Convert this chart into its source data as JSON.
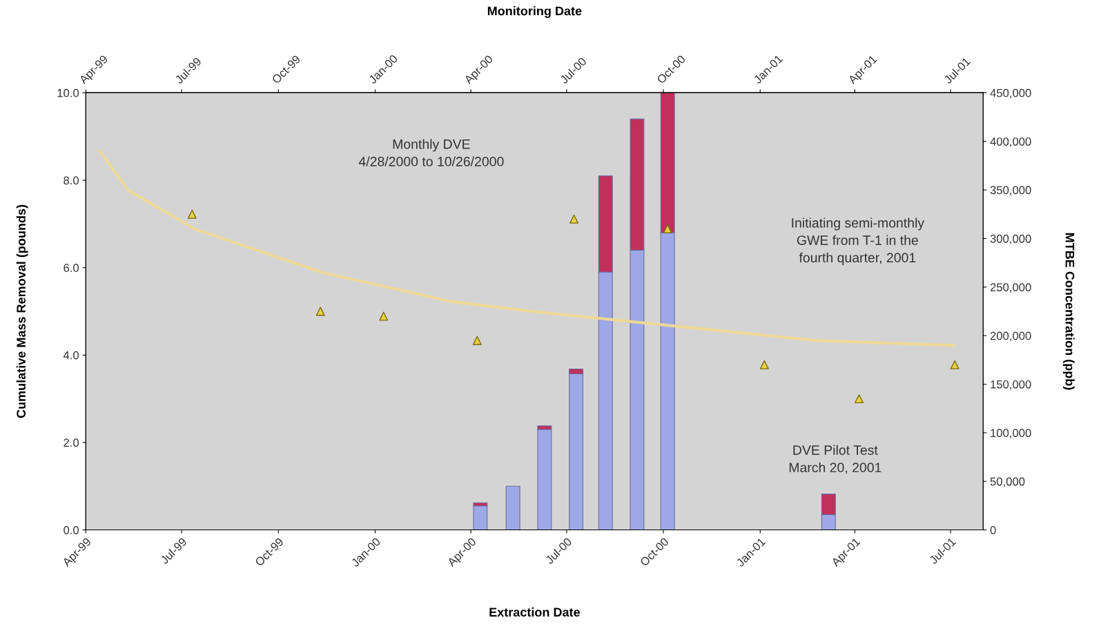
{
  "chart_data": {
    "type": "bar",
    "stacked": true,
    "xlabel": "Extraction Date",
    "x2label": "Monitoring Date",
    "ylabel": "Cumulative Mass Removal (pounds)",
    "y2label": "MTBE Concentration (ppb)",
    "xlim": [
      "1999-04-01",
      "2001-08-01"
    ],
    "xticks": [
      {
        "value": "1999-04-01",
        "label": "Apr-99"
      },
      {
        "value": "1999-07-01",
        "label": "Jul-99"
      },
      {
        "value": "1999-10-01",
        "label": "Oct-99"
      },
      {
        "value": "2000-01-01",
        "label": "Jan-00"
      },
      {
        "value": "2000-04-01",
        "label": "Apr-00"
      },
      {
        "value": "2000-07-01",
        "label": "Jul-00"
      },
      {
        "value": "2000-10-01",
        "label": "Oct-00"
      },
      {
        "value": "2001-01-01",
        "label": "Jan-01"
      },
      {
        "value": "2001-04-01",
        "label": "Apr-01"
      },
      {
        "value": "2001-07-01",
        "label": "Jul-01"
      }
    ],
    "x2lim": [
      "1999-04-01",
      "2001-08-01"
    ],
    "x2ticks": [
      {
        "value": "1999-04-01",
        "label": "Apr-99"
      },
      {
        "value": "1999-07-01",
        "label": "Jul-99"
      },
      {
        "value": "1999-10-01",
        "label": "Oct-99"
      },
      {
        "value": "2000-01-01",
        "label": "Jan-00"
      },
      {
        "value": "2000-04-01",
        "label": "Apr-00"
      },
      {
        "value": "2000-07-01",
        "label": "Jul-00"
      },
      {
        "value": "2000-10-01",
        "label": "Oct-00"
      },
      {
        "value": "2001-01-01",
        "label": "Jan-01"
      },
      {
        "value": "2001-04-01",
        "label": "Apr-01"
      },
      {
        "value": "2001-07-01",
        "label": "Jul-01"
      }
    ],
    "ylim": [
      0,
      10
    ],
    "yticks": [
      {
        "value": 0,
        "label": "0.0"
      },
      {
        "value": 2,
        "label": "2.0"
      },
      {
        "value": 4,
        "label": "4.0"
      },
      {
        "value": 6,
        "label": "6.0"
      },
      {
        "value": 8,
        "label": "8.0"
      },
      {
        "value": 10,
        "label": "10.0"
      }
    ],
    "y2lim": [
      0,
      450000
    ],
    "y2ticks": [
      0,
      {
        "value": 50000,
        "label": "50,000"
      },
      {
        "value": 100000,
        "label": "100,000"
      },
      {
        "value": 150000,
        "label": "150,000"
      },
      {
        "value": 200000,
        "label": "200,000"
      },
      {
        "value": 250000,
        "label": "250,000"
      },
      {
        "value": 300000,
        "label": "300,000"
      },
      {
        "value": 350000,
        "label": "350,000"
      },
      {
        "value": 400000,
        "label": "400,000"
      },
      {
        "value": 450000,
        "label": "450,000"
      }
    ],
    "grid": false,
    "series": [
      {
        "color": "#9ea8e6",
        "x": [
          "2000-04-10",
          "2000-05-11",
          "2000-06-10",
          "2000-07-10",
          "2000-08-07",
          "2000-09-06",
          "2000-10-05",
          "2001-03-07"
        ],
        "values": [
          0.55,
          1.0,
          2.3,
          3.57,
          5.9,
          6.4,
          6.8,
          0.35
        ]
      },
      {
        "color": "#c0305a",
        "x": [
          "2000-04-10",
          "2000-05-11",
          "2000-06-10",
          "2000-07-10",
          "2000-08-07",
          "2000-09-06",
          "2000-10-05",
          "2001-03-07"
        ],
        "values": [
          0.07,
          null,
          0.08,
          0.11,
          2.2,
          3.0,
          3.2,
          0.47
        ]
      },
      {
        "type": "line",
        "axis": "y2",
        "color": "#ecd898",
        "x": [
          "1999-04-14",
          "1999-05-11",
          "1999-07-13",
          "1999-11-12",
          "2000-03-14",
          "2000-05-29",
          "2000-10-11",
          "2001-02-23",
          "2001-07-04"
        ],
        "values": [
          390000,
          350000,
          310000,
          265000,
          235000,
          225000,
          210000,
          195000,
          190000
        ]
      },
      {
        "type": "scatter",
        "axis": "y2",
        "marker": "triangle",
        "color": "#e8d040",
        "x": [
          "1999-07-11",
          "1999-11-10",
          "2000-01-09",
          "2000-04-07",
          "2000-07-08",
          "2000-10-05",
          "2001-01-05",
          "2001-04-05",
          "2001-07-05"
        ],
        "values": [
          325000,
          225000,
          220000,
          195000,
          320000,
          310000,
          170000,
          135000,
          170000
        ]
      }
    ],
    "annotations": [
      "Monthly DVE\n4/28/2000 to 10/26/2000",
      "Initiating semi-monthly\nGWE from T-1 in the\nfourth quarter, 2001",
      "DVE Pilot Test\nMarch 20, 2001"
    ]
  }
}
